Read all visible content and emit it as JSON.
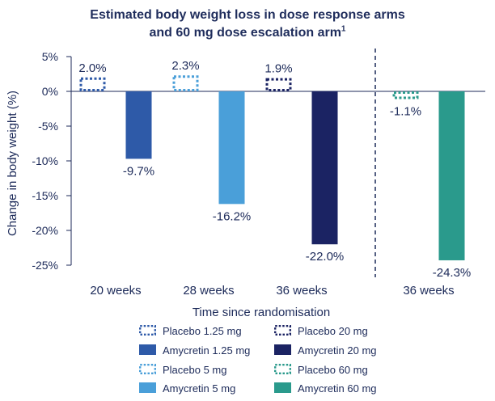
{
  "chart_data": {
    "type": "bar",
    "title_line1": "Estimated body weight loss in dose response arms",
    "title_line2": "and 60 mg dose escalation arm",
    "title_superscript": "1",
    "xlabel": "Time since randomisation",
    "ylabel": "Change in body weight (%)",
    "ylim": [
      -25,
      5
    ],
    "yticks": [
      5,
      0,
      -5,
      -10,
      -15,
      -20,
      -25
    ],
    "ytick_labels": [
      "5%",
      "0%",
      "-5%",
      "-10%",
      "-15%",
      "-20%",
      "-25%"
    ],
    "groups": [
      {
        "category": "20 weeks",
        "bars": [
          {
            "series": "Placebo 1.25 mg",
            "value": 2.0,
            "label": "2.0%"
          },
          {
            "series": "Amycretin 1.25 mg",
            "value": -9.7,
            "label": "-9.7%"
          }
        ]
      },
      {
        "category": "28 weeks",
        "bars": [
          {
            "series": "Placebo 5 mg",
            "value": 2.3,
            "label": "2.3%"
          },
          {
            "series": "Amycretin 5 mg",
            "value": -16.2,
            "label": "-16.2%"
          }
        ]
      },
      {
        "category": "36 weeks",
        "bars": [
          {
            "series": "Placebo 20 mg",
            "value": 1.9,
            "label": "1.9%"
          },
          {
            "series": "Amycretin 20 mg",
            "value": -22.0,
            "label": "-22.0%"
          }
        ]
      },
      {
        "category": "36 weeks",
        "bars": [
          {
            "series": "Placebo 60 mg",
            "value": -1.1,
            "label": "-1.1%"
          },
          {
            "series": "Amycretin 60 mg",
            "value": -24.3,
            "label": "-24.3%"
          }
        ]
      }
    ],
    "series": [
      {
        "name": "Placebo 1.25 mg",
        "color": "#2e5aa8",
        "style": "dotted-outline"
      },
      {
        "name": "Placebo 20 mg",
        "color": "#1b2363",
        "style": "dotted-outline"
      },
      {
        "name": "Amycretin 1.25 mg",
        "color": "#2e5aa8",
        "style": "filled"
      },
      {
        "name": "Amycretin 20 mg",
        "color": "#1b2363",
        "style": "filled"
      },
      {
        "name": "Placebo 5 mg",
        "color": "#4a9fd9",
        "style": "dotted-outline"
      },
      {
        "name": "Placebo 60 mg",
        "color": "#2a9a8c",
        "style": "dotted-outline"
      },
      {
        "name": "Amycretin 5 mg",
        "color": "#4a9fd9",
        "style": "filled"
      },
      {
        "name": "Amycretin 60 mg",
        "color": "#2a9a8c",
        "style": "filled"
      }
    ],
    "separator_before_group": 3
  }
}
